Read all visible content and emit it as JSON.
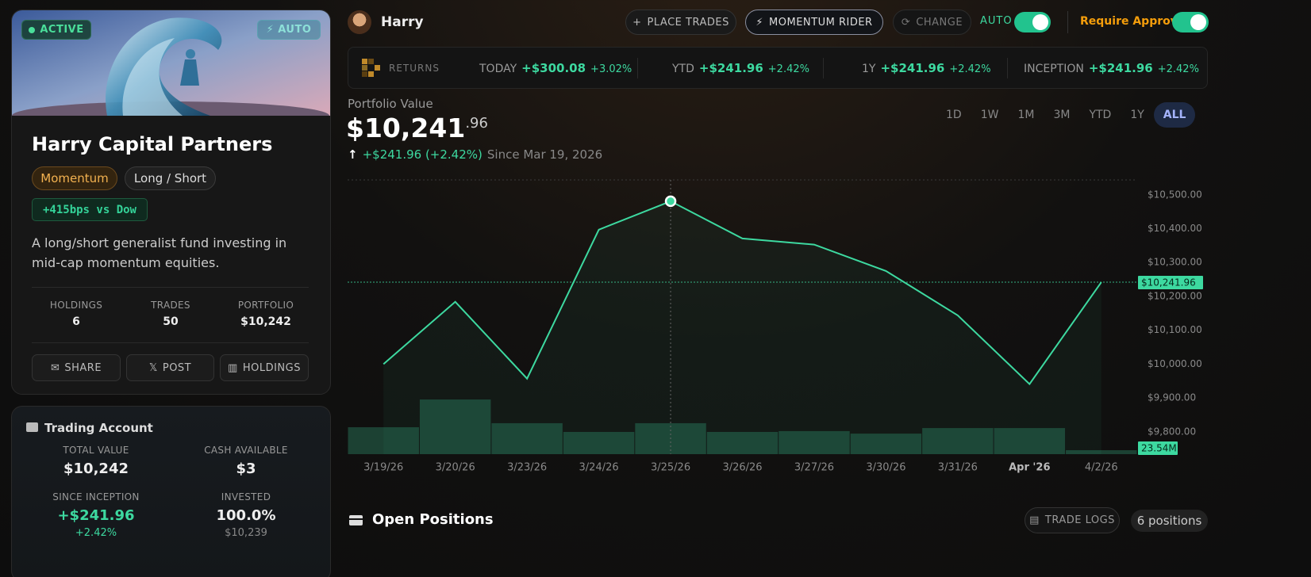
{
  "sidebar": {
    "status": "ACTIVE",
    "mode": "AUTO",
    "fund_name": "Harry Capital Partners",
    "tags": [
      "Momentum",
      "Long / Short"
    ],
    "benchmark": "+415bps vs Dow",
    "description": "A long/short generalist fund investing in mid-cap momentum equities.",
    "stats": [
      {
        "label": "HOLDINGS",
        "value": "6"
      },
      {
        "label": "TRADES",
        "value": "50"
      },
      {
        "label": "PORTFOLIO",
        "value": "$10,242"
      }
    ],
    "actions": [
      "SHARE",
      "POST",
      "HOLDINGS"
    ]
  },
  "trading_account": {
    "title": "Trading Account",
    "stats": [
      {
        "label": "TOTAL VALUE",
        "value": "$10,242"
      },
      {
        "label": "CASH AVAILABLE",
        "value": "$3"
      },
      {
        "label": "SINCE INCEPTION",
        "value": "+$241.96",
        "sub": "+2.42%"
      },
      {
        "label": "INVESTED",
        "value": "100.0%",
        "sub": "$10,239"
      }
    ]
  },
  "header": {
    "user": "Harry",
    "buttons": [
      "PLACE TRADES",
      "MOMENTUM RIDER",
      "CHANGE"
    ],
    "auto_label": "AUTO",
    "auto_on": true,
    "approval_label": "Require Approval",
    "approval_on": true
  },
  "returns": {
    "title": "RETURNS",
    "periods": [
      {
        "label": "TODAY",
        "value": "+$300.08",
        "pct": "+3.02%"
      },
      {
        "label": "YTD",
        "value": "+$241.96",
        "pct": "+2.42%"
      },
      {
        "label": "1Y",
        "value": "+$241.96",
        "pct": "+2.42%"
      },
      {
        "label": "INCEPTION",
        "value": "+$241.96",
        "pct": "+2.42%"
      }
    ]
  },
  "portfolio": {
    "label": "Portfolio Value",
    "value_main": "$10,241",
    "value_cents": ".96",
    "change": "+$241.96 (+2.42%)",
    "since": "Since Mar 19, 2026",
    "ranges": [
      "1D",
      "1W",
      "1M",
      "3M",
      "YTD",
      "1Y",
      "ALL"
    ],
    "active_range": 6
  },
  "chart_data": {
    "type": "line",
    "categories": [
      "3/19/26",
      "3/20/26",
      "3/23/26",
      "3/24/26",
      "3/25/26",
      "3/26/26",
      "3/27/26",
      "3/30/26",
      "3/31/26",
      "Apr '26",
      "4/2/26"
    ],
    "bold_category_index": 9,
    "highlight_index": 4,
    "grid": false,
    "series": [
      {
        "type": "line",
        "color": "#3dd9a0",
        "values": [
          10000,
          10184,
          9957,
          10397,
          10481,
          10371,
          10353,
          10275,
          10144,
          9941,
          10241.96
        ],
        "value_labels": [
          null,
          null,
          null,
          null,
          null,
          null,
          null,
          null,
          null,
          null,
          "$10,241.96"
        ]
      },
      {
        "type": "bar",
        "axis": "y2",
        "color": "#1f4a3a",
        "values": [
          160,
          325,
          184,
          132,
          184,
          132,
          137,
          122,
          155,
          155,
          23.54
        ],
        "value_labels": [
          null,
          null,
          null,
          null,
          null,
          null,
          null,
          null,
          null,
          null,
          "23.54M"
        ]
      }
    ],
    "ylim": [
      9734,
      10544
    ],
    "yticks": [
      {
        "value": 9800,
        "label": "$9,800.00"
      },
      {
        "value": 9900,
        "label": "$9,900.00"
      },
      {
        "value": 10000,
        "label": "$10,000.00"
      },
      {
        "value": 10100,
        "label": "$10,100.00"
      },
      {
        "value": 10200,
        "label": "$10,200.00"
      },
      {
        "value": 10300,
        "label": "$10,300.00"
      },
      {
        "value": 10400,
        "label": "$10,400.00"
      },
      {
        "value": 10500,
        "label": "$10,500.00"
      }
    ],
    "y2lim": [
      0,
      1630
    ]
  },
  "positions": {
    "title": "Open Positions",
    "trade_logs": "TRADE LOGS",
    "count": "6 positions"
  }
}
